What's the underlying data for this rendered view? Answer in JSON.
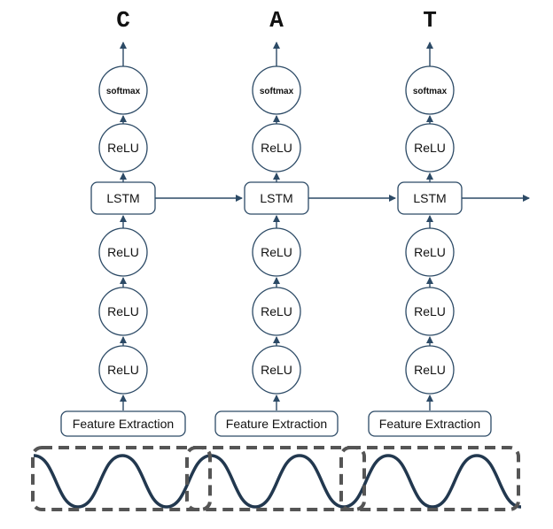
{
  "output_letters": [
    "C",
    "A",
    "T"
  ],
  "layers": {
    "softmax": "softmax",
    "relu": "ReLU",
    "lstm": "LSTM",
    "feature": "Feature Extraction"
  },
  "colors": {
    "stroke": "#2c4a66",
    "wave": "#22384f",
    "frame": "#555555"
  }
}
